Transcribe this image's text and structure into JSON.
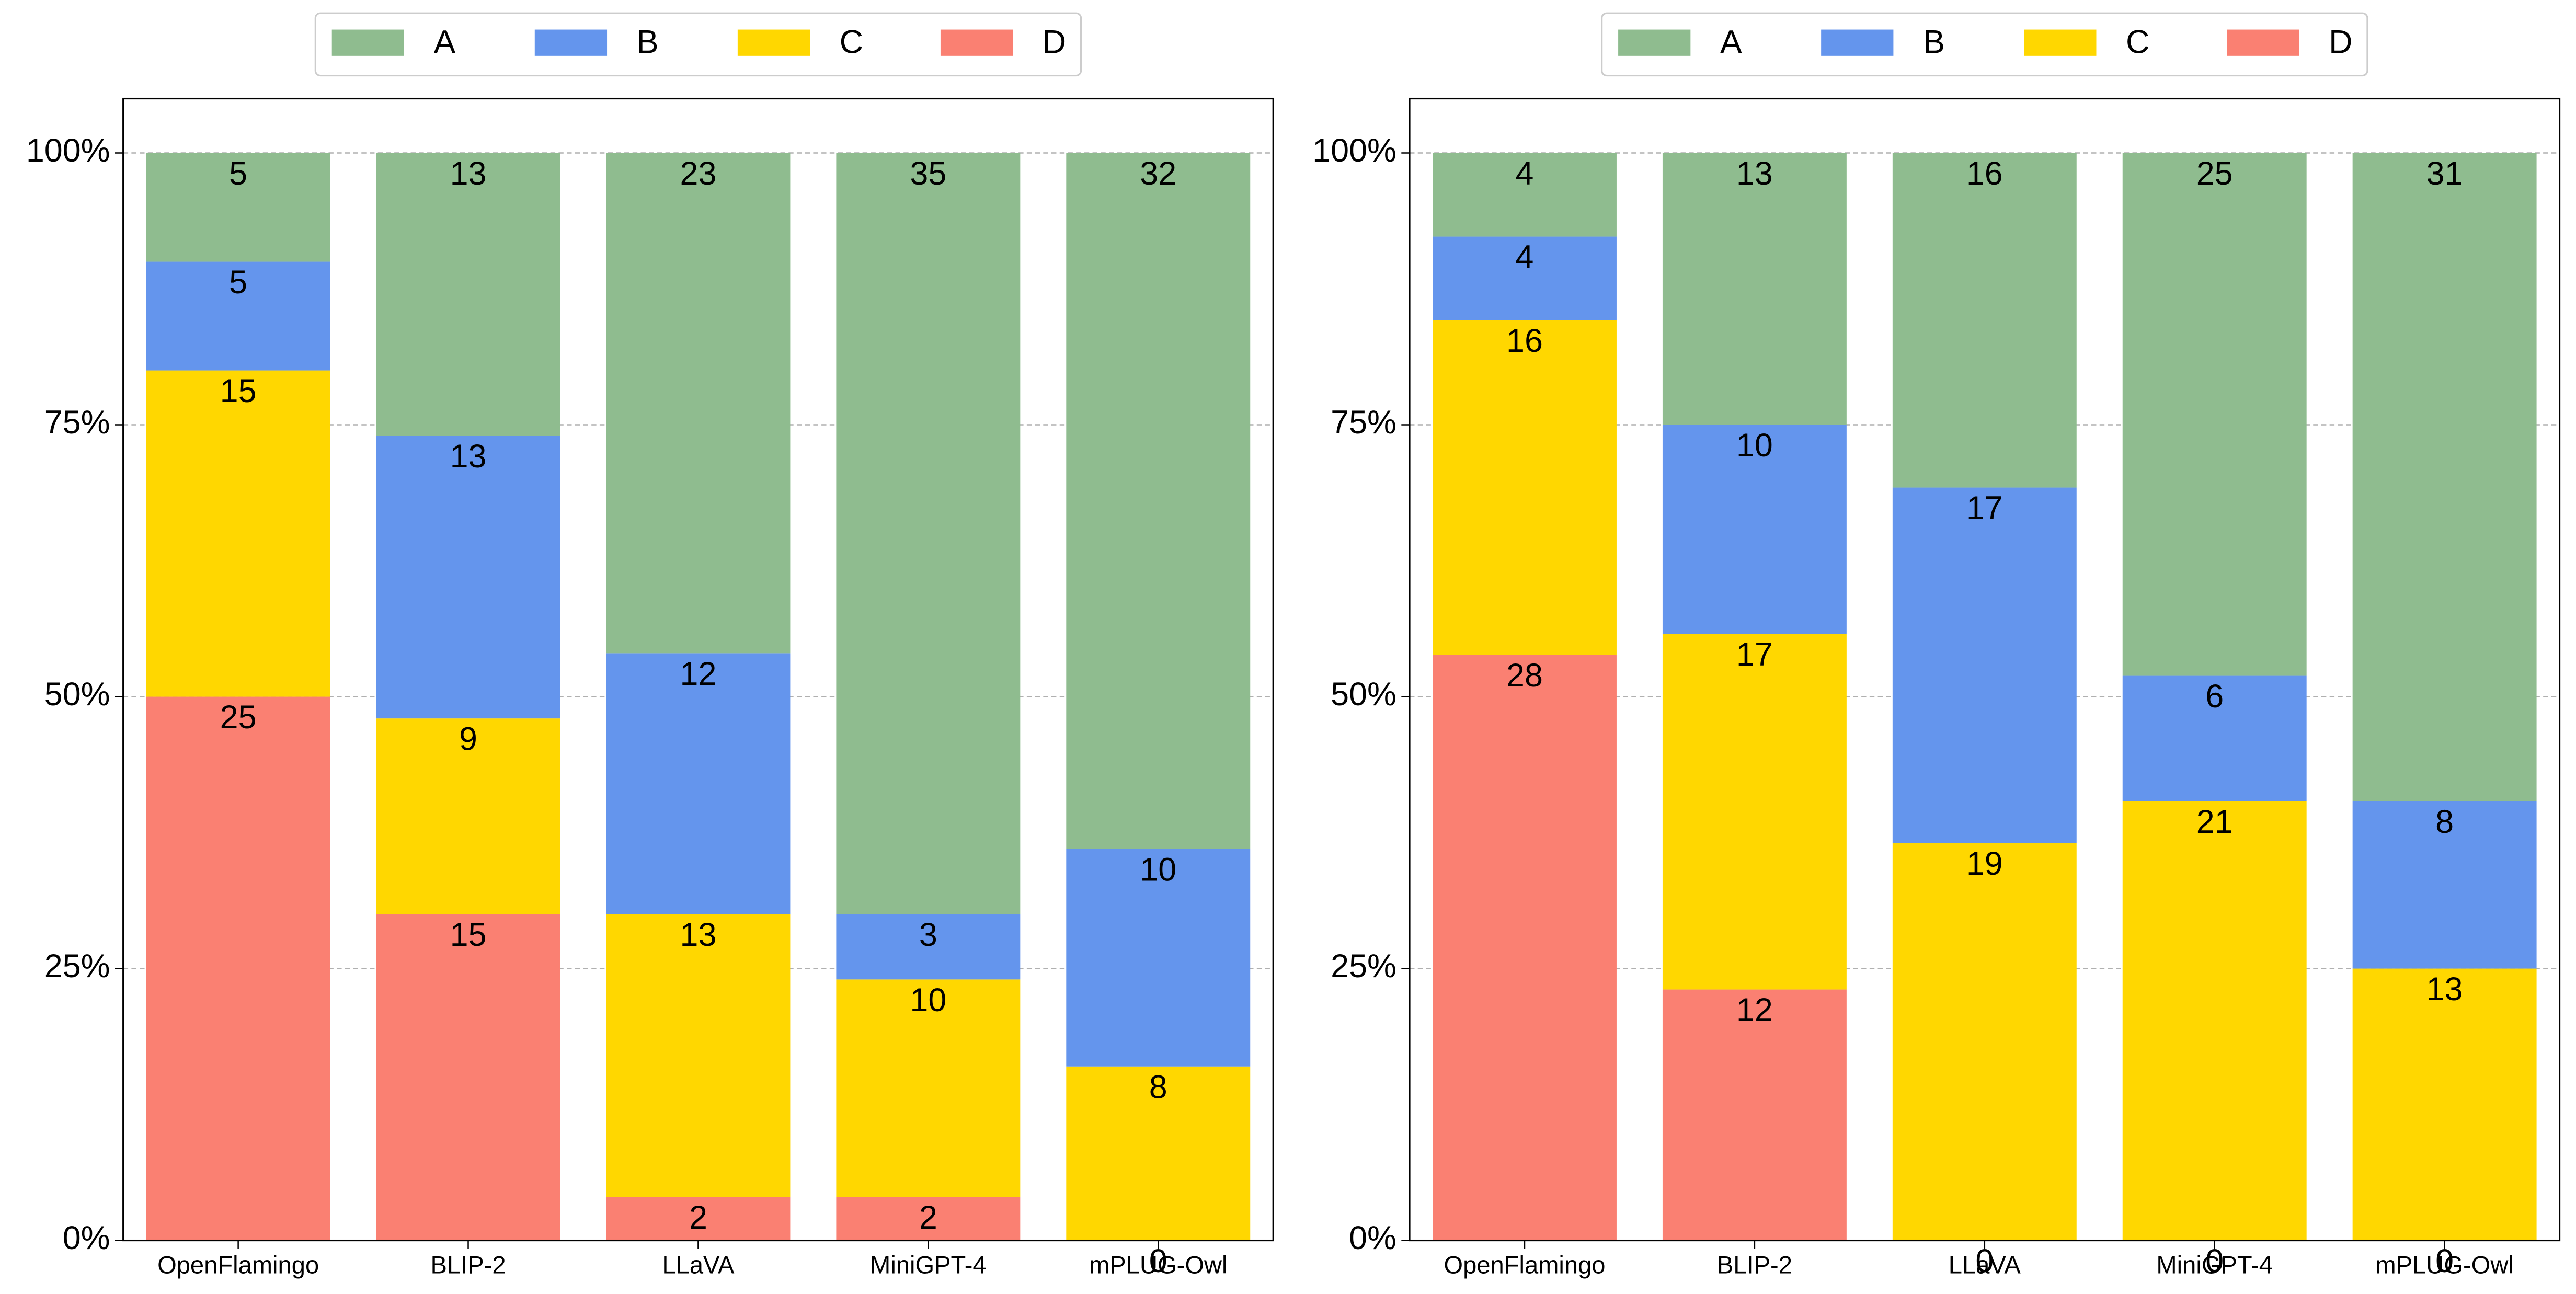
{
  "chart_data": [
    {
      "type": "percent_stacked_bar",
      "categories": [
        "OpenFlamingo",
        "BLIP-2",
        "LLaVA",
        "MiniGPT-4",
        "mPLUG-Owl"
      ],
      "series": [
        {
          "name": "A",
          "color": "#8fbc8f",
          "values": [
            5,
            13,
            23,
            35,
            32
          ]
        },
        {
          "name": "B",
          "color": "#6495ed",
          "values": [
            5,
            13,
            12,
            3,
            10
          ]
        },
        {
          "name": "C",
          "color": "#ffd700",
          "values": [
            15,
            9,
            13,
            10,
            8
          ]
        },
        {
          "name": "D",
          "color": "#fa8072",
          "values": [
            25,
            15,
            2,
            2,
            0
          ]
        }
      ],
      "ylim": [
        0,
        105
      ],
      "yticks": [
        {
          "value": 0,
          "label": "0%"
        },
        {
          "value": 25,
          "label": "25%"
        },
        {
          "value": 50,
          "label": "50%"
        },
        {
          "value": 75,
          "label": "75%"
        },
        {
          "value": 100,
          "label": "100%"
        }
      ],
      "grid": true,
      "legend": "top"
    },
    {
      "type": "percent_stacked_bar",
      "categories": [
        "OpenFlamingo",
        "BLIP-2",
        "LLaVA",
        "MiniGPT-4",
        "mPLUG-Owl"
      ],
      "series": [
        {
          "name": "A",
          "color": "#8fbc8f",
          "values": [
            4,
            13,
            16,
            25,
            31
          ]
        },
        {
          "name": "B",
          "color": "#6495ed",
          "values": [
            4,
            10,
            17,
            6,
            8
          ]
        },
        {
          "name": "C",
          "color": "#ffd700",
          "values": [
            16,
            17,
            19,
            21,
            13
          ]
        },
        {
          "name": "D",
          "color": "#fa8072",
          "values": [
            28,
            12,
            0,
            0,
            0
          ]
        }
      ],
      "ylim": [
        0,
        105
      ],
      "yticks": [
        {
          "value": 0,
          "label": "0%"
        },
        {
          "value": 25,
          "label": "25%"
        },
        {
          "value": 50,
          "label": "50%"
        },
        {
          "value": 75,
          "label": "75%"
        },
        {
          "value": 100,
          "label": "100%"
        }
      ],
      "grid": true,
      "legend": "top"
    }
  ]
}
